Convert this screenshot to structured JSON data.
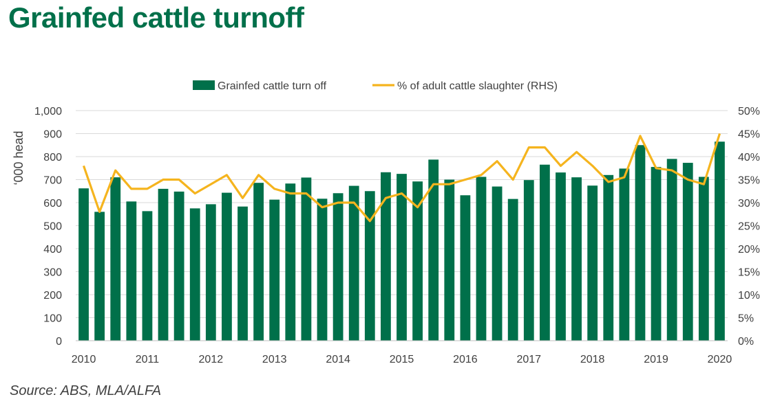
{
  "title": "Grainfed cattle turnoff",
  "source": "Source: ABS, MLA/ALFA",
  "colors": {
    "bar": "#00704A",
    "line": "#F5B41E",
    "title": "#00704A",
    "grid": "#d9d9d9"
  },
  "chart_data": {
    "type": "bar",
    "ylabel": "‘000 head",
    "y_ticks": [
      "0",
      "100",
      "200",
      "300",
      "400",
      "500",
      "600",
      "700",
      "800",
      "900",
      "1,000"
    ],
    "y2_ticks": [
      "0%",
      "5%",
      "10%",
      "15%",
      "20%",
      "25%",
      "30%",
      "35%",
      "40%",
      "45%",
      "50%"
    ],
    "x_tick_labels": [
      "2010",
      "2011",
      "2012",
      "2013",
      "2014",
      "2015",
      "2016",
      "2017",
      "2018",
      "2019",
      "2020"
    ],
    "ylim": [
      0,
      1000
    ],
    "y2lim": [
      0,
      50
    ],
    "grid": true,
    "legend_position": "top",
    "x_quarters": [
      "2010 Q1",
      "2010 Q2",
      "2010 Q3",
      "2010 Q4",
      "2011 Q1",
      "2011 Q2",
      "2011 Q3",
      "2011 Q4",
      "2012 Q1",
      "2012 Q2",
      "2012 Q3",
      "2012 Q4",
      "2013 Q1",
      "2013 Q2",
      "2013 Q3",
      "2013 Q4",
      "2014 Q1",
      "2014 Q2",
      "2014 Q3",
      "2014 Q4",
      "2015 Q1",
      "2015 Q2",
      "2015 Q3",
      "2015 Q4",
      "2016 Q1",
      "2016 Q2",
      "2016 Q3",
      "2016 Q4",
      "2017 Q1",
      "2017 Q2",
      "2017 Q3",
      "2017 Q4",
      "2018 Q1",
      "2018 Q2",
      "2018 Q3",
      "2018 Q4",
      "2019 Q1",
      "2019 Q2",
      "2019 Q3",
      "2019 Q4",
      "2020 Q1"
    ],
    "series": [
      {
        "name": "Grainfed cattle turn off",
        "type": "bar",
        "axis": "left",
        "values": [
          662,
          560,
          710,
          605,
          563,
          660,
          648,
          575,
          593,
          643,
          583,
          686,
          613,
          683,
          709,
          617,
          641,
          673,
          650,
          732,
          725,
          692,
          787,
          700,
          632,
          712,
          670,
          616,
          698,
          765,
          731,
          710,
          674,
          720,
          748,
          850,
          755,
          790,
          773,
          712,
          865
        ]
      },
      {
        "name": "% of adult cattle slaughter (RHS)",
        "type": "line",
        "axis": "right",
        "values": [
          38,
          28,
          37,
          33,
          33,
          35,
          35,
          32,
          34,
          36,
          31,
          36,
          33,
          32,
          32,
          29,
          30,
          30,
          26,
          31,
          32,
          29,
          34,
          34,
          35,
          36,
          39,
          35,
          42,
          42,
          38,
          41,
          38,
          34.5,
          35.5,
          44.5,
          37.5,
          37,
          35,
          34,
          45
        ]
      }
    ]
  }
}
